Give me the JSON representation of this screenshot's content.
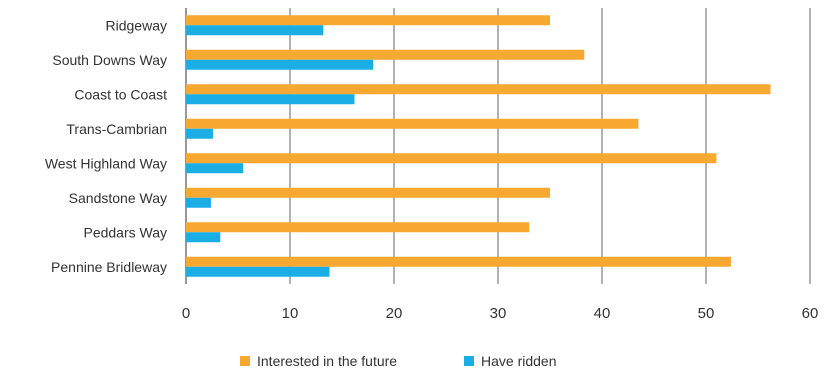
{
  "chart_data": {
    "type": "bar",
    "orientation": "horizontal",
    "categories": [
      "Ridgeway",
      "South Downs Way",
      "Coast to Coast",
      "Trans-Cambrian",
      "West Highland Way",
      "Sandstone Way",
      "Peddars Way",
      "Pennine Bridleway"
    ],
    "series": [
      {
        "name": "Interested in the future",
        "color": "#F7A831",
        "values": [
          35,
          38.3,
          56.2,
          43.5,
          51,
          35,
          33,
          52.4
        ]
      },
      {
        "name": "Have ridden",
        "color": "#1BAEE4",
        "values": [
          13.2,
          18,
          16.2,
          2.6,
          5.5,
          2.4,
          3.3,
          13.8
        ]
      }
    ],
    "xlim": [
      0,
      60
    ],
    "xticks": [
      0,
      10,
      20,
      30,
      40,
      50,
      60
    ],
    "grid": "vertical",
    "legend_position": "bottom",
    "title": "",
    "xlabel": "",
    "ylabel": ""
  }
}
